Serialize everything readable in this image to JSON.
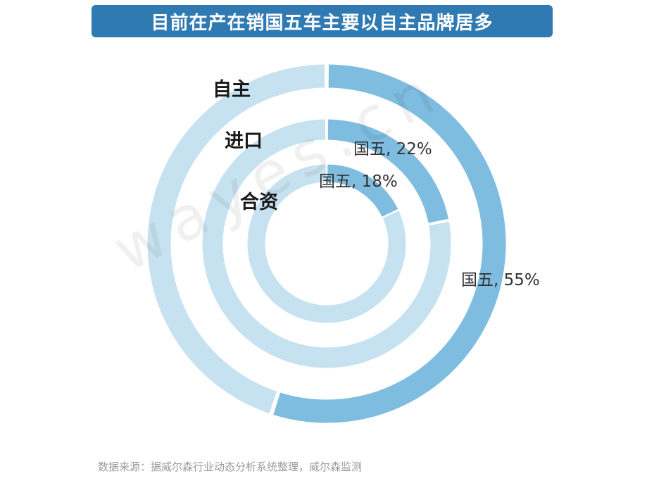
{
  "title": "目前在产在销国五车主要以自主品牌居多",
  "source": "数据来源：据威尔森行业动态分析系统整理，威尔森监测",
  "watermark": "wayes.cn",
  "colors": {
    "banner": "#2f7ab2",
    "highlight": "#7fbde0",
    "remainder": "#c6e2f1"
  },
  "chart_data": {
    "type": "donut",
    "rings": [
      {
        "name": "自主",
        "highlight_label": "国五",
        "value": 55,
        "label_text": "国五, 55%"
      },
      {
        "name": "进口",
        "highlight_label": "国五",
        "value": 22,
        "label_text": "国五, 22%"
      },
      {
        "name": "合资",
        "highlight_label": "国五",
        "value": 18,
        "label_text": "国五, 18%"
      }
    ],
    "unit": "%",
    "legend": "none"
  }
}
